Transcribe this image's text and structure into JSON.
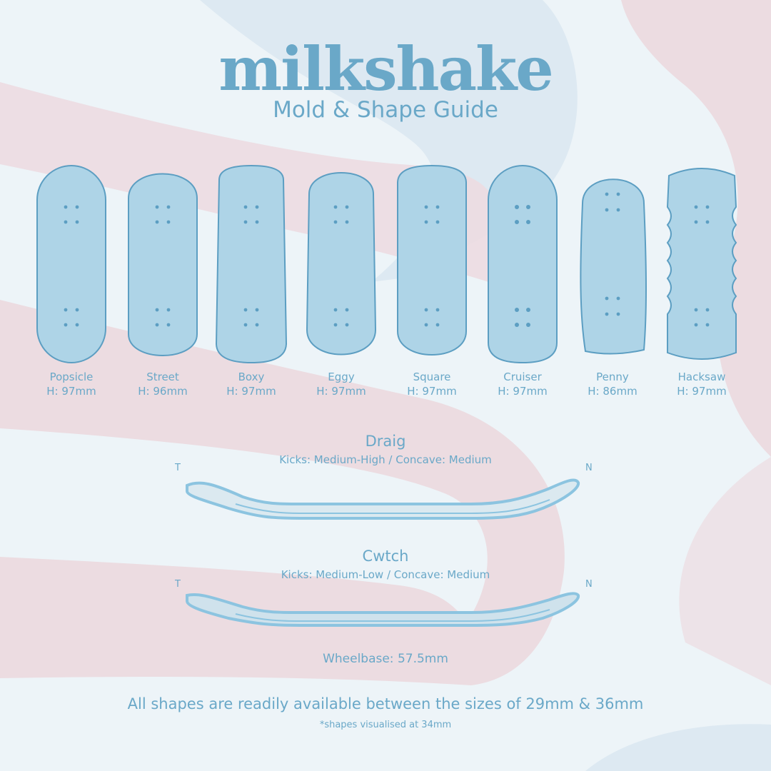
{
  "brand": {
    "logo": "milkshake",
    "subtitle": "Mold & Shape Guide"
  },
  "colors": {
    "background": "#edf4f8",
    "pink": "#ecdce1",
    "blue_band": "#dde9f2",
    "deck_fill": "#aed4e7",
    "deck_stroke": "#5c9ec2",
    "text": "#6aa8c8"
  },
  "shapes": [
    {
      "name": "Popsicle",
      "height": "H: 97mm"
    },
    {
      "name": "Street",
      "height": "H: 96mm"
    },
    {
      "name": "Boxy",
      "height": "H: 97mm"
    },
    {
      "name": "Eggy",
      "height": "H: 97mm"
    },
    {
      "name": "Square",
      "height": "H: 97mm"
    },
    {
      "name": "Cruiser",
      "height": "H: 97mm"
    },
    {
      "name": "Penny",
      "height": "H: 86mm"
    },
    {
      "name": "Hacksaw",
      "height": "H: 97mm"
    }
  ],
  "molds": [
    {
      "name": "Draig",
      "specs": "Kicks: Medium-High / Concave: Medium",
      "tail": "T",
      "nose": "N"
    },
    {
      "name": "Cwtch",
      "specs": "Kicks: Medium-Low / Concave: Medium",
      "tail": "T",
      "nose": "N"
    }
  ],
  "wheelbase": "Wheelbase: 57.5mm",
  "footer": "All shapes are readily available between the sizes of 29mm & 36mm",
  "footnote": "*shapes visualised at 34mm"
}
